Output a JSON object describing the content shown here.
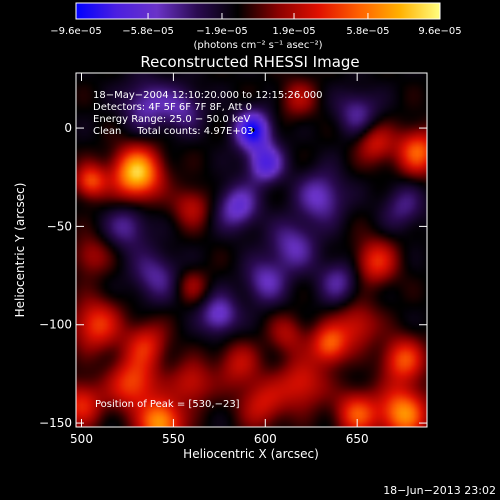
{
  "chart_data": {
    "type": "heatmap",
    "title": "Reconstructed RHESSI Image",
    "xlabel": "Heliocentric X (arcsec)",
    "ylabel": "Heliocentric Y (arcsec)",
    "xlim": [
      497,
      688
    ],
    "ylim": [
      -152,
      28
    ],
    "x_ticks": [
      500,
      550,
      600,
      650
    ],
    "x_tick_labels": [
      "500",
      "550",
      "600",
      "650"
    ],
    "y_ticks": [
      0,
      -50,
      -100,
      -150
    ],
    "y_tick_labels": [
      "0",
      "−50",
      "−100",
      "−150"
    ],
    "colorbar": {
      "range": [
        -9.6e-05,
        9.6e-05
      ],
      "ticks": [
        -9.6e-05,
        -5.8e-05,
        -1.9e-05,
        1.9e-05,
        5.8e-05,
        9.6e-05
      ],
      "tick_labels": [
        "−9.6e−05",
        "−5.8e−05",
        "−1.9e−05",
        "1.9e−05",
        "5.8e−05",
        "9.6e−05"
      ],
      "unit_label": "(photons cm⁻² s⁻¹ asec⁻²)",
      "colors": [
        "#0000ff",
        "#4b1fe0",
        "#6a33c8",
        "#2a0a50",
        "#000000",
        "#8a0000",
        "#e01000",
        "#ff6000",
        "#ffb000",
        "#ffff80"
      ]
    },
    "annotations": {
      "date_line": "18−May−2004 12:10:20.000 to 12:15:26.000",
      "detectors_line": "Detectors: 4F 5F 6F 7F 8F, Att 0",
      "energy_line": "Energy Range: 25.0 − 50.0 keV",
      "clean_line": "Clean     Total counts: 4.97E+03",
      "peak_line": "Position of Peak = [530,−23]"
    },
    "peak": {
      "x": 530,
      "y": -23
    },
    "min_marker": {
      "x": 593,
      "y": -1
    },
    "blobs": [
      {
        "x": 530,
        "y": -23,
        "v": 1.0,
        "s": 9
      },
      {
        "x": 505,
        "y": -27,
        "v": 0.6,
        "s": 6
      },
      {
        "x": 508,
        "y": -100,
        "v": 0.55,
        "s": 9
      },
      {
        "x": 535,
        "y": -110,
        "v": 0.45,
        "s": 8
      },
      {
        "x": 528,
        "y": -130,
        "v": 0.6,
        "s": 9
      },
      {
        "x": 500,
        "y": -140,
        "v": 0.5,
        "s": 8
      },
      {
        "x": 543,
        "y": -150,
        "v": 0.85,
        "s": 8
      },
      {
        "x": 560,
        "y": -130,
        "v": 0.4,
        "s": 8
      },
      {
        "x": 585,
        "y": -120,
        "v": 0.35,
        "s": 8
      },
      {
        "x": 598,
        "y": -140,
        "v": 0.4,
        "s": 9
      },
      {
        "x": 620,
        "y": -130,
        "v": 0.45,
        "s": 9
      },
      {
        "x": 635,
        "y": -110,
        "v": 0.65,
        "s": 7
      },
      {
        "x": 650,
        "y": -100,
        "v": 0.4,
        "s": 8
      },
      {
        "x": 675,
        "y": -118,
        "v": 0.6,
        "s": 8
      },
      {
        "x": 675,
        "y": -145,
        "v": 0.8,
        "s": 9
      },
      {
        "x": 650,
        "y": -145,
        "v": 0.6,
        "s": 8
      },
      {
        "x": 660,
        "y": -68,
        "v": 0.5,
        "s": 8
      },
      {
        "x": 683,
        "y": -12,
        "v": 0.65,
        "s": 8
      },
      {
        "x": 660,
        "y": -8,
        "v": 0.4,
        "s": 7
      },
      {
        "x": 560,
        "y": -40,
        "v": 0.35,
        "s": 7
      },
      {
        "x": 618,
        "y": 15,
        "v": 0.3,
        "s": 7
      },
      {
        "x": 560,
        "y": -80,
        "v": 0.25,
        "s": 6
      },
      {
        "x": 612,
        "y": -105,
        "v": 0.3,
        "s": 7
      },
      {
        "x": 505,
        "y": -65,
        "v": 0.3,
        "s": 7
      },
      {
        "x": 593,
        "y": -1,
        "v": -0.8,
        "s": 7
      },
      {
        "x": 600,
        "y": -18,
        "v": -0.6,
        "s": 7
      },
      {
        "x": 585,
        "y": -40,
        "v": -0.5,
        "s": 8
      },
      {
        "x": 535,
        "y": 12,
        "v": -0.4,
        "s": 9
      },
      {
        "x": 555,
        "y": 10,
        "v": -0.35,
        "s": 8
      },
      {
        "x": 630,
        "y": -35,
        "v": -0.45,
        "s": 9
      },
      {
        "x": 615,
        "y": -60,
        "v": -0.4,
        "s": 9
      },
      {
        "x": 575,
        "y": -95,
        "v": -0.5,
        "s": 7
      },
      {
        "x": 540,
        "y": -75,
        "v": -0.35,
        "s": 9
      },
      {
        "x": 600,
        "y": -78,
        "v": -0.4,
        "s": 8
      },
      {
        "x": 640,
        "y": -78,
        "v": -0.35,
        "s": 8
      },
      {
        "x": 525,
        "y": -50,
        "v": -0.35,
        "s": 8
      },
      {
        "x": 650,
        "y": 8,
        "v": -0.35,
        "s": 8
      },
      {
        "x": 675,
        "y": -40,
        "v": -0.3,
        "s": 8
      }
    ]
  },
  "footer": {
    "timestamp": "18−Jun−2013 23:02"
  }
}
